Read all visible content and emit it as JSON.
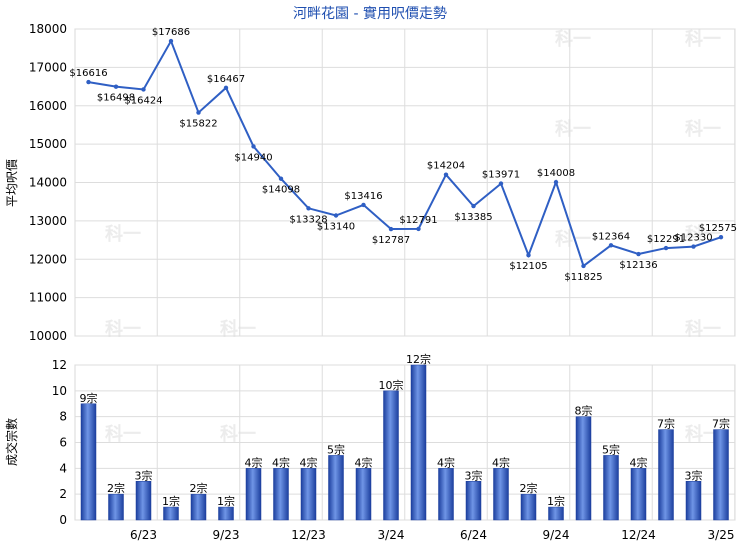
{
  "chart_data": [
    {
      "type": "line",
      "title": "河畔花園 - 實用呎價走勢",
      "ylabel": "平均呎價",
      "ylim": [
        10000,
        18000
      ],
      "yticks": [
        "10000",
        "11000",
        "12000",
        "13000",
        "14000",
        "15000",
        "16000",
        "17000",
        "18000"
      ],
      "grid": true,
      "values": [
        16616,
        16498,
        16424,
        17686,
        15822,
        16467,
        14940,
        14098,
        13328,
        13140,
        13416,
        12787,
        12791,
        14204,
        13385,
        13971,
        12105,
        14008,
        11825,
        12364,
        12136,
        12291,
        12330,
        12575
      ],
      "labels": [
        "$16616",
        "$16498",
        "$16424",
        "$17686",
        "$15822",
        "$16467",
        "$14940",
        "$14098",
        "$13328",
        "$13140",
        "$13416",
        "$12787",
        "$12791",
        "$14204",
        "$13385",
        "$13971",
        "$12105",
        "$14008",
        "$11825",
        "$12364",
        "$12136",
        "$12291",
        "$12330",
        "$12575"
      ],
      "color": "#2f5fc4"
    },
    {
      "type": "bar",
      "ylabel": "成交宗數",
      "ylim": [
        0,
        12
      ],
      "yticks": [
        "0",
        "2",
        "4",
        "6",
        "8",
        "10",
        "12"
      ],
      "grid": true,
      "values": [
        9,
        2,
        3,
        1,
        2,
        1,
        4,
        4,
        4,
        5,
        4,
        10,
        12,
        4,
        3,
        4,
        2,
        1,
        8,
        5,
        4,
        7,
        3,
        7
      ],
      "labels": [
        "9宗",
        "2宗",
        "3宗",
        "1宗",
        "2宗",
        "1宗",
        "4宗",
        "4宗",
        "4宗",
        "5宗",
        "4宗",
        "10宗",
        "12宗",
        "4宗",
        "3宗",
        "4宗",
        "2宗",
        "1宗",
        "8宗",
        "5宗",
        "4宗",
        "7宗",
        "3宗",
        "7宗"
      ],
      "xticks": [
        {
          "index": 2,
          "label": "6/23"
        },
        {
          "index": 5,
          "label": "9/23"
        },
        {
          "index": 8,
          "label": "12/23"
        },
        {
          "index": 11,
          "label": "3/24"
        },
        {
          "index": 14,
          "label": "6/24"
        },
        {
          "index": 17,
          "label": "9/24"
        },
        {
          "index": 20,
          "label": "12/24"
        },
        {
          "index": 23,
          "label": "3/25"
        }
      ],
      "color": "#2f5fc4"
    }
  ],
  "watermark": "科一"
}
